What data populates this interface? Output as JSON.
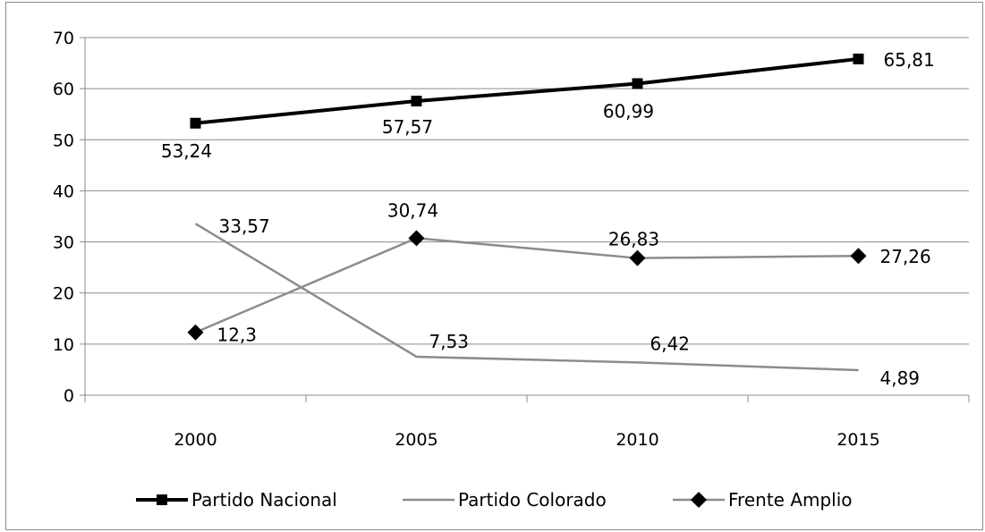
{
  "chart_data": {
    "type": "line",
    "categories": [
      "2000",
      "2005",
      "2010",
      "2015"
    ],
    "ylim": [
      0,
      70
    ],
    "yticks": [
      0,
      10,
      20,
      30,
      40,
      50,
      60,
      70
    ],
    "grid": true,
    "legend_position": "bottom",
    "series": [
      {
        "name": "Partido Nacional",
        "values": [
          53.24,
          57.57,
          60.99,
          65.81
        ],
        "labels": [
          "53,24",
          "57,57",
          "60,99",
          "65,81"
        ],
        "color": "#000000",
        "marker": "square"
      },
      {
        "name": "Partido Colorado",
        "values": [
          33.57,
          7.53,
          6.42,
          4.89
        ],
        "labels": [
          "33,57",
          "7,53",
          "6,42",
          "4,89"
        ],
        "color": "#8c8c8c",
        "marker": "none"
      },
      {
        "name": "Frente Amplio",
        "values": [
          12.3,
          30.74,
          26.83,
          27.26
        ],
        "labels": [
          "12,3",
          "30,74",
          "26,83",
          "27,26"
        ],
        "color": "#8c8c8c",
        "marker": "diamond"
      }
    ]
  }
}
